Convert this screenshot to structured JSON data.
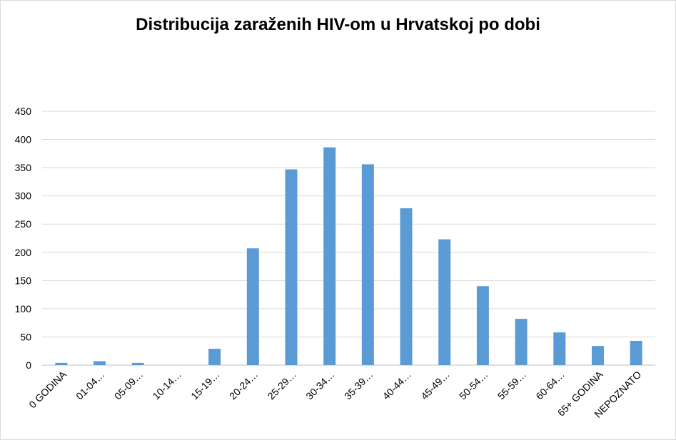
{
  "chart_data": {
    "type": "bar",
    "title": "Distribucija zaraženih HIV-om u Hrvatskoj po dobi",
    "xlabel": "",
    "ylabel": "",
    "categories": [
      "0 GODINA",
      "01-04…",
      "05-09…",
      "10-14…",
      "15-19…",
      "20-24…",
      "25-29…",
      "30-34…",
      "35-39…",
      "40-44…",
      "45-49…",
      "50-54…",
      "55-59…",
      "60-64…",
      "65+ GODINA",
      "NEPOZNATO"
    ],
    "series": [
      {
        "values": [
          4,
          7,
          4,
          0,
          29,
          207,
          347,
          386,
          356,
          278,
          223,
          140,
          82,
          58,
          34,
          43
        ]
      }
    ],
    "ylim": [
      0,
      450
    ],
    "yticks": [
      "0",
      "50",
      "100",
      "150",
      "200",
      "250",
      "300",
      "350",
      "400",
      "450"
    ],
    "grid": true,
    "legend": "none",
    "colors": {
      "bar": "#5b9bd5",
      "grid": "#d9d9d9",
      "axis": "#bfbfbf"
    }
  }
}
